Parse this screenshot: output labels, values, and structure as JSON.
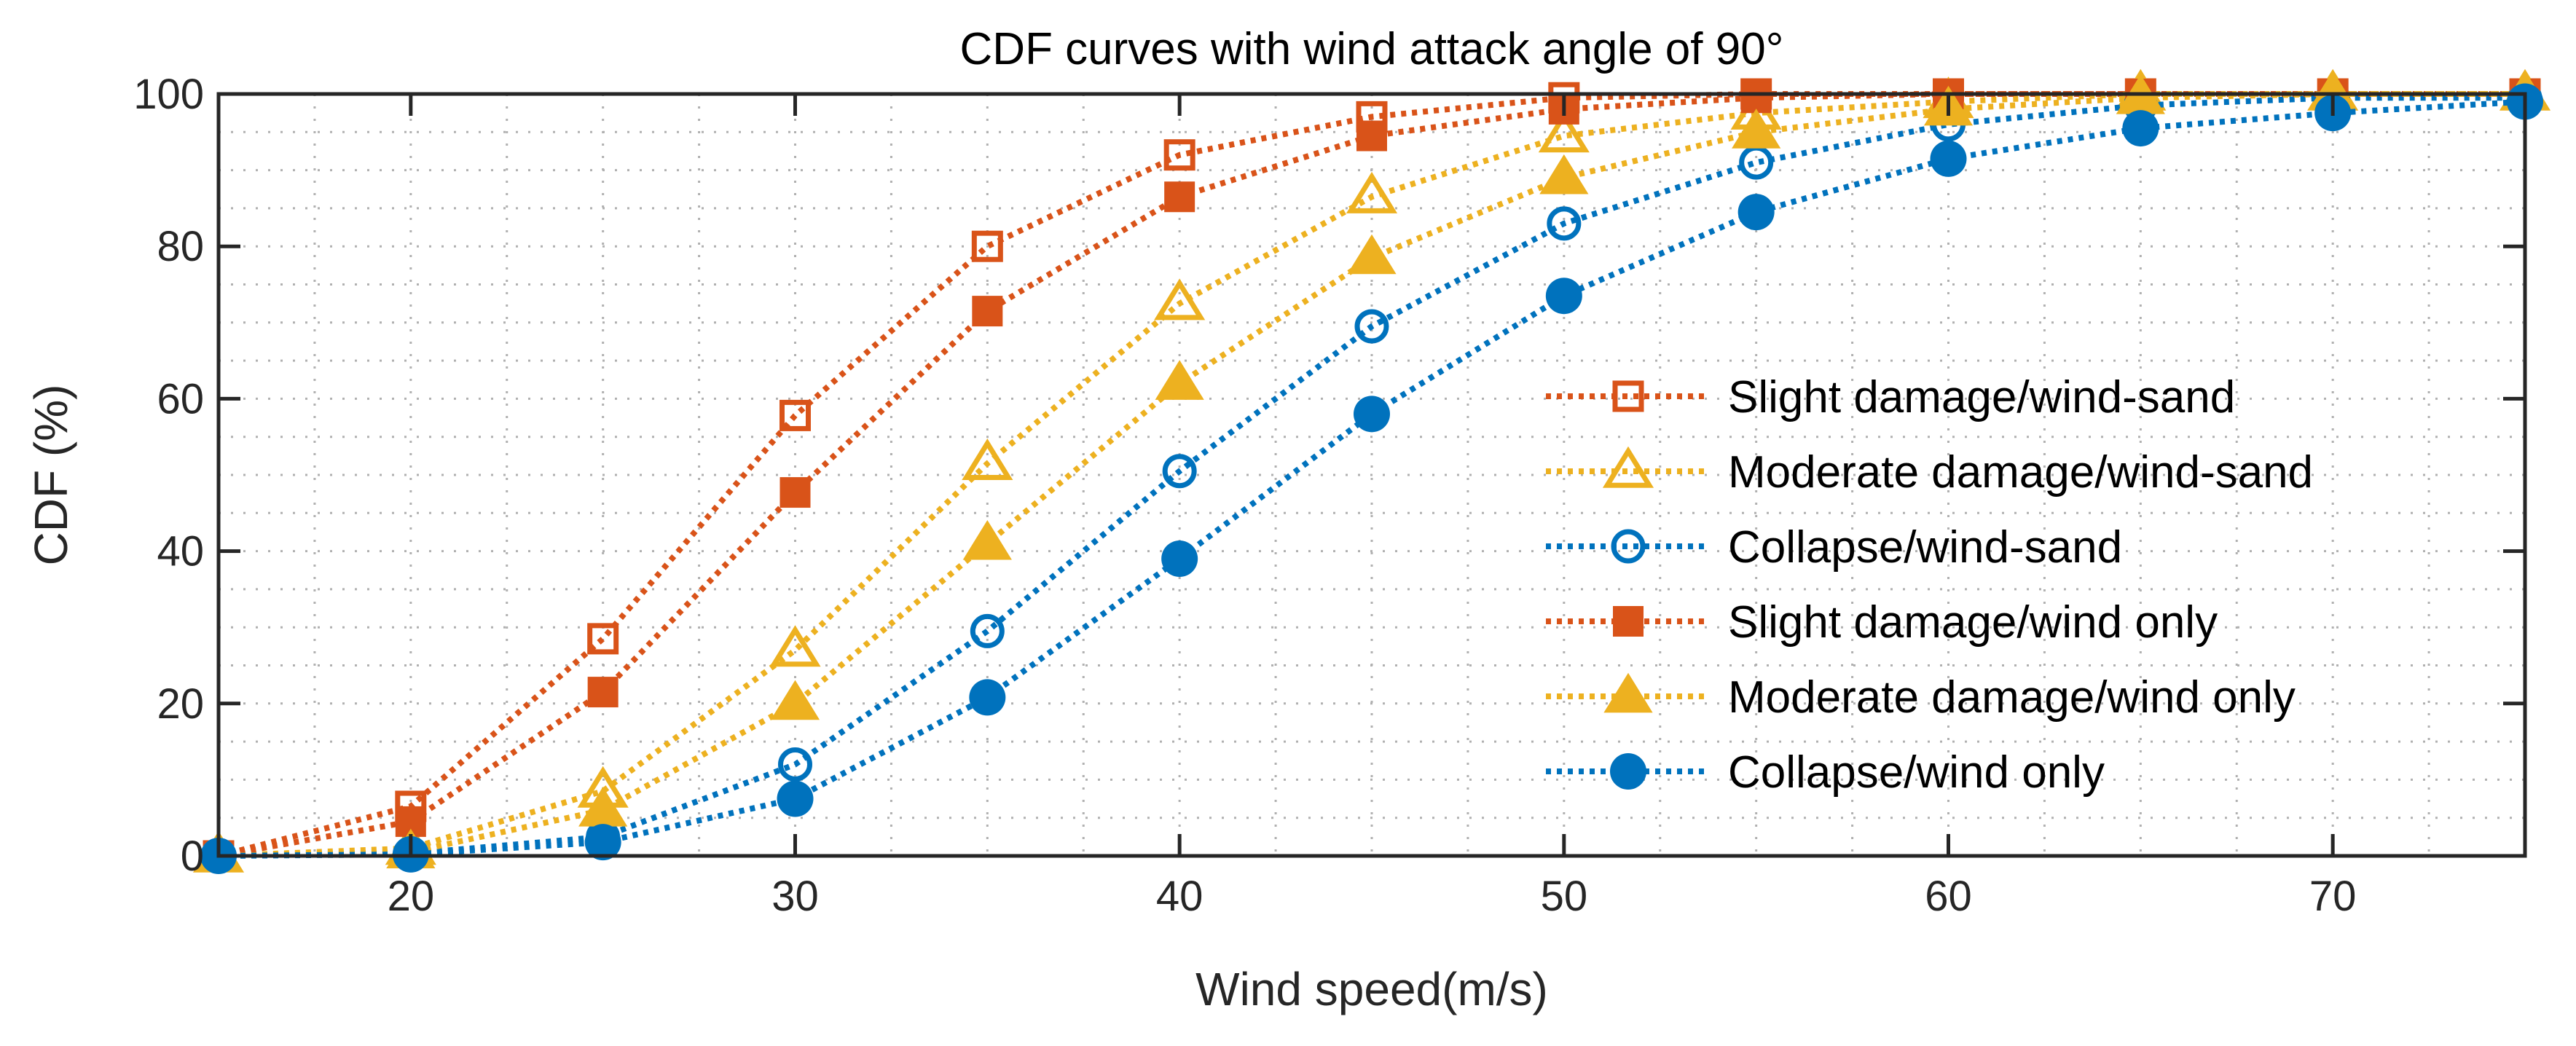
{
  "chart_data": {
    "type": "line",
    "title": "CDF curves with wind attack angle of 90°",
    "xlabel": "Wind speed(m/s)",
    "ylabel": "CDF (%)",
    "xlim": [
      15,
      75
    ],
    "ylim": [
      0,
      100
    ],
    "xticks": [
      20,
      30,
      40,
      50,
      60,
      70
    ],
    "yticks": [
      0,
      20,
      40,
      60,
      80,
      100
    ],
    "grid": true,
    "legend_position": "center-right",
    "x": [
      15,
      20,
      25,
      30,
      35,
      40,
      45,
      50,
      55,
      60,
      65,
      70,
      75
    ],
    "series": [
      {
        "name": "Slight damage/wind-sand",
        "color": "#D95319",
        "marker": "square-open",
        "values": [
          0,
          6.5,
          28.5,
          57.8,
          80,
          92,
          97,
          99.5,
          100,
          100,
          100,
          100,
          100
        ]
      },
      {
        "name": "Moderate damage/wind-sand",
        "color": "#EDB120",
        "marker": "triangle-open",
        "values": [
          0,
          1,
          8.5,
          27,
          51.5,
          72.5,
          86.5,
          94.5,
          97.5,
          99,
          100,
          100,
          100
        ]
      },
      {
        "name": "Collapse/wind-sand",
        "color": "#0072BD",
        "marker": "circle-open",
        "values": [
          0,
          0.3,
          2.5,
          12,
          29.5,
          50.5,
          69.5,
          83,
          91,
          96,
          98.5,
          99.5,
          99.5
        ]
      },
      {
        "name": "Slight damage/wind only",
        "color": "#D95319",
        "marker": "square-filled",
        "values": [
          0,
          4.5,
          21.5,
          47.7,
          71.5,
          86.5,
          94.5,
          98,
          99.5,
          100,
          100,
          100,
          100
        ]
      },
      {
        "name": "Moderate damage/wind only",
        "color": "#EDB120",
        "marker": "triangle-filled",
        "values": [
          0,
          0.5,
          6,
          20,
          41,
          62,
          78.5,
          89,
          95,
          98,
          99.5,
          100,
          100
        ]
      },
      {
        "name": "Collapse/wind only",
        "color": "#0072BD",
        "marker": "circle-filled",
        "values": [
          0,
          0.2,
          1.8,
          7.5,
          20.8,
          39,
          58,
          73.5,
          84.5,
          91.5,
          95.5,
          97.5,
          99
        ]
      }
    ]
  }
}
